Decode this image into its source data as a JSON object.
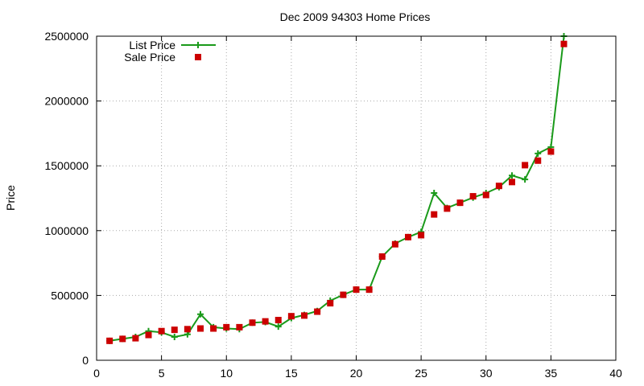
{
  "chart_data": {
    "type": "line",
    "title": "Dec 2009 94303 Home Prices",
    "xlabel": "",
    "ylabel": "Price",
    "xlim": [
      0,
      40
    ],
    "ylim": [
      0,
      2500000
    ],
    "xticks": [
      "0",
      "5",
      "10",
      "15",
      "20",
      "25",
      "30",
      "35",
      "40"
    ],
    "yticks": [
      "0",
      "500000",
      "1000000",
      "1500000",
      "2000000",
      "2500000"
    ],
    "grid": true,
    "legend_position": "top-left",
    "series": [
      {
        "name": "List Price",
        "style": "line-with-plus-markers",
        "color": "#1a9a1a",
        "x": [
          1,
          2,
          3,
          4,
          5,
          6,
          7,
          8,
          9,
          10,
          11,
          12,
          13,
          14,
          15,
          16,
          17,
          18,
          19,
          20,
          21,
          22,
          23,
          24,
          25,
          26,
          27,
          28,
          29,
          30,
          31,
          32,
          33,
          34,
          35,
          36
        ],
        "y": [
          150000,
          165000,
          180000,
          225000,
          215000,
          180000,
          200000,
          355000,
          255000,
          245000,
          240000,
          290000,
          295000,
          260000,
          325000,
          350000,
          380000,
          460000,
          505000,
          545000,
          545000,
          800000,
          900000,
          950000,
          990000,
          1290000,
          1175000,
          1215000,
          1255000,
          1290000,
          1335000,
          1425000,
          1395000,
          1595000,
          1645000,
          2500000
        ]
      },
      {
        "name": "Sale Price",
        "style": "square-markers",
        "color": "#cc0000",
        "x": [
          1,
          2,
          3,
          4,
          5,
          6,
          7,
          8,
          9,
          10,
          11,
          12,
          13,
          14,
          15,
          16,
          17,
          18,
          19,
          20,
          21,
          22,
          23,
          24,
          25,
          26,
          27,
          28,
          29,
          30,
          31,
          32,
          33,
          34,
          35,
          36
        ],
        "y": [
          150000,
          165000,
          170000,
          195000,
          225000,
          235000,
          240000,
          245000,
          245000,
          255000,
          255000,
          290000,
          300000,
          310000,
          340000,
          345000,
          375000,
          440000,
          505000,
          545000,
          545000,
          800000,
          895000,
          950000,
          965000,
          1125000,
          1170000,
          1215000,
          1265000,
          1275000,
          1345000,
          1375000,
          1505000,
          1540000,
          1610000,
          2440000
        ]
      }
    ]
  }
}
